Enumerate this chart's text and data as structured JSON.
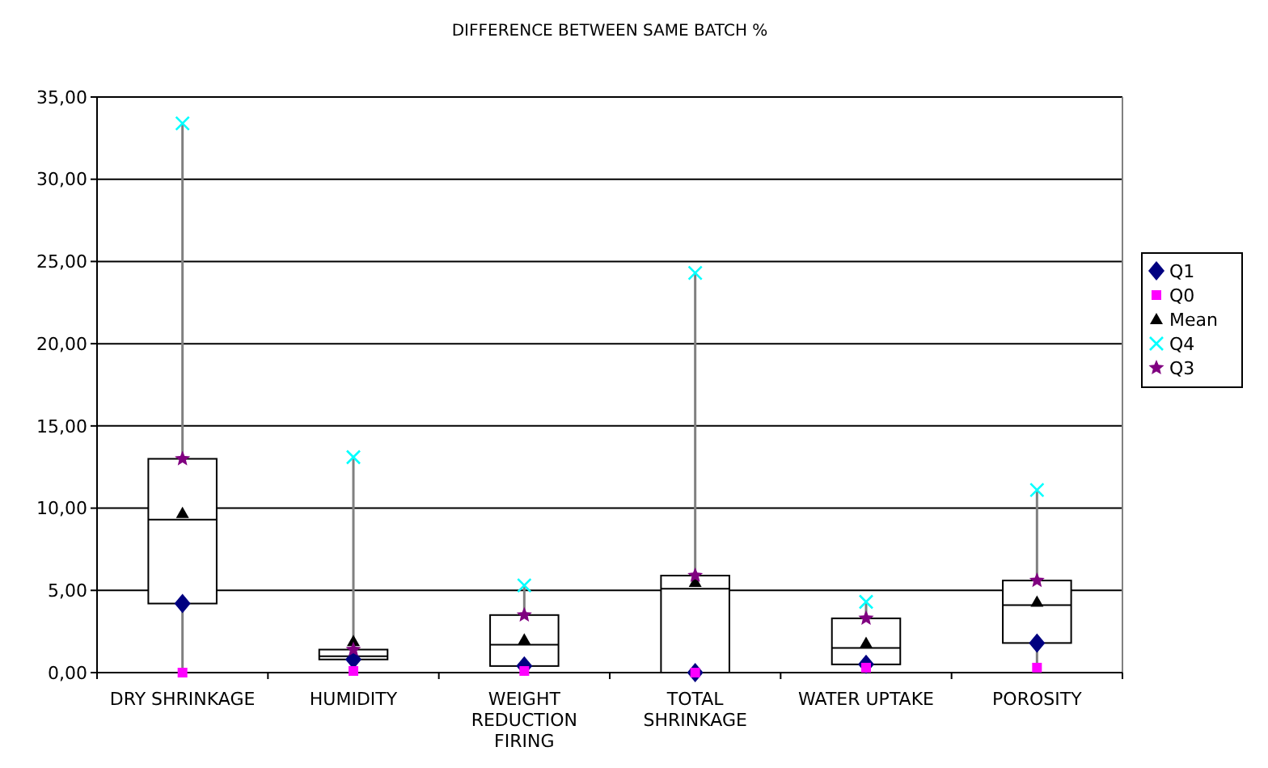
{
  "chart_data": {
    "type": "box",
    "title": "DIFFERENCE BETWEEN SAME BATCH %",
    "categories": [
      "DRY SHRINKAGE",
      "HUMIDITY",
      "WEIGHT REDUCTION FIRING",
      "TOTAL SHRINKAGE",
      "WATER UPTAKE",
      "POROSITY"
    ],
    "boxes": [
      {
        "low": 0,
        "q1": 4.2,
        "median": 9.3,
        "q3": 13,
        "high": 33.4
      },
      {
        "low": 0.1,
        "q1": 0.8,
        "median": 1.0,
        "q3": 1.4,
        "high": 13.1
      },
      {
        "low": 0.1,
        "q1": 0.4,
        "median": 1.7,
        "q3": 3.5,
        "high": 5.3
      },
      {
        "low": 0,
        "q1": 0,
        "median": 5.1,
        "q3": 5.9,
        "high": 24.3
      },
      {
        "low": 0.3,
        "q1": 0.5,
        "median": 1.5,
        "q3": 3.3,
        "high": 4.3
      },
      {
        "low": 0.3,
        "q1": 1.8,
        "median": 4.1,
        "q3": 5.6,
        "high": 11.1
      }
    ],
    "series": [
      {
        "name": "Q1",
        "type": "scatter",
        "marker": "diamond",
        "color": "#000080",
        "x": [
          "DRY SHRINKAGE",
          "HUMIDITY",
          "WEIGHT REDUCTION FIRING",
          "TOTAL SHRINKAGE",
          "WATER UPTAKE",
          "POROSITY"
        ],
        "values": [
          4.2,
          0.8,
          0.4,
          0,
          0.5,
          1.8
        ]
      },
      {
        "name": "Q0",
        "type": "scatter",
        "marker": "square",
        "color": "#ff00ff",
        "x": [
          "DRY SHRINKAGE",
          "HUMIDITY",
          "WEIGHT REDUCTION FIRING",
          "TOTAL SHRINKAGE",
          "WATER UPTAKE",
          "POROSITY"
        ],
        "values": [
          0,
          0.1,
          0.1,
          0,
          0.3,
          0.3
        ]
      },
      {
        "name": "Mean",
        "type": "scatter",
        "marker": "triangle",
        "color": "#000000",
        "x": [
          "DRY SHRINKAGE",
          "HUMIDITY",
          "WEIGHT REDUCTION FIRING",
          "TOTAL SHRINKAGE",
          "WATER UPTAKE",
          "POROSITY"
        ],
        "values": [
          9.7,
          1.9,
          2.0,
          5.5,
          1.8,
          4.3
        ]
      },
      {
        "name": "Q4",
        "type": "scatter",
        "marker": "cross",
        "color": "#00ffff",
        "x": [
          "DRY SHRINKAGE",
          "HUMIDITY",
          "WEIGHT REDUCTION FIRING",
          "TOTAL SHRINKAGE",
          "WATER UPTAKE",
          "POROSITY"
        ],
        "values": [
          33.4,
          13.1,
          5.3,
          24.3,
          4.3,
          11.1
        ]
      },
      {
        "name": "Q3",
        "type": "scatter",
        "marker": "star",
        "color": "#800080",
        "x": [
          "DRY SHRINKAGE",
          "HUMIDITY",
          "WEIGHT REDUCTION FIRING",
          "TOTAL SHRINKAGE",
          "WATER UPTAKE",
          "POROSITY"
        ],
        "values": [
          13,
          1.4,
          3.5,
          5.9,
          3.3,
          5.6
        ]
      }
    ],
    "ylim": [
      0,
      35
    ],
    "yticks": [
      {
        "value": 0,
        "label": "0,00"
      },
      {
        "value": 5,
        "label": "5,00"
      },
      {
        "value": 10,
        "label": "10,00"
      },
      {
        "value": 15,
        "label": "15,00"
      },
      {
        "value": 20,
        "label": "20,00"
      },
      {
        "value": 25,
        "label": "25,00"
      },
      {
        "value": 30,
        "label": "30,00"
      },
      {
        "value": 35,
        "label": "35,00"
      }
    ],
    "grid": "y",
    "legend": "right"
  }
}
